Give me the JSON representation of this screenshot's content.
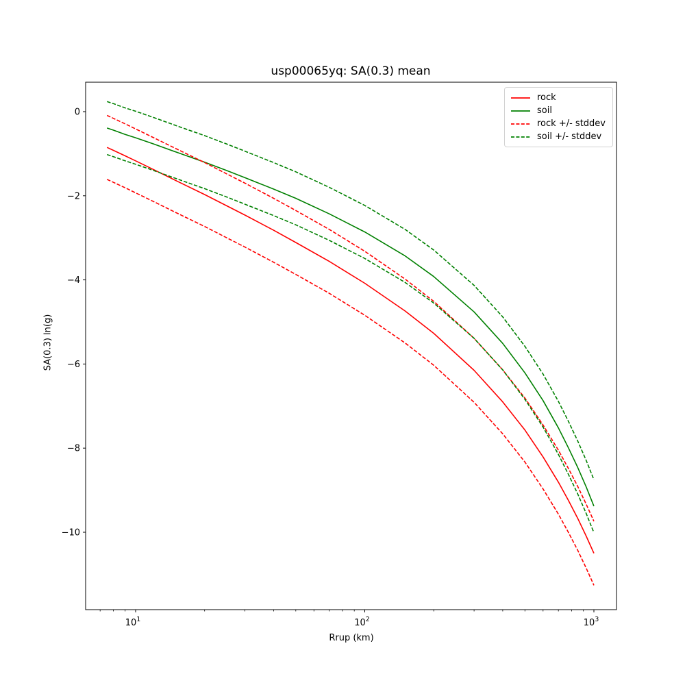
{
  "chart_data": {
    "type": "line",
    "title": "usp00065yq: SA(0.3) mean",
    "xlabel": "Rrup (km)",
    "ylabel": "SA(0.3) ln(g)",
    "x_scale": "log",
    "xlim": [
      6.05,
      1255
    ],
    "ylim": [
      -11.84,
      0.7
    ],
    "grid": false,
    "x_major_ticks": [
      10,
      100,
      1000
    ],
    "x_major_tick_exponents": [
      "1",
      "2",
      "3"
    ],
    "x_major_tick_base": "10",
    "x_minor_ticks": [
      7,
      8,
      9,
      20,
      30,
      40,
      50,
      60,
      70,
      80,
      90,
      200,
      300,
      400,
      500,
      600,
      700,
      800,
      900
    ],
    "y_ticks": [
      0,
      -2,
      -4,
      -6,
      -8,
      -10
    ],
    "x": [
      7.5,
      8,
      9,
      10,
      12,
      15,
      20,
      25,
      30,
      40,
      50,
      70,
      100,
      150,
      200,
      300,
      400,
      500,
      600,
      700,
      775,
      850,
      925,
      1000
    ],
    "series": [
      {
        "name": "rock",
        "color": "#ff0000",
        "style": "solid",
        "values": [
          -0.85,
          -0.92,
          -1.05,
          -1.17,
          -1.38,
          -1.64,
          -1.97,
          -2.24,
          -2.46,
          -2.82,
          -3.11,
          -3.56,
          -4.08,
          -4.74,
          -5.27,
          -6.15,
          -6.9,
          -7.57,
          -8.21,
          -8.81,
          -9.25,
          -9.67,
          -10.09,
          -10.5
        ]
      },
      {
        "name": "soil",
        "color": "#008000",
        "style": "solid",
        "values": [
          -0.39,
          -0.44,
          -0.54,
          -0.62,
          -0.77,
          -0.96,
          -1.2,
          -1.4,
          -1.57,
          -1.84,
          -2.06,
          -2.43,
          -2.86,
          -3.43,
          -3.92,
          -4.76,
          -5.51,
          -6.21,
          -6.87,
          -7.52,
          -8.0,
          -8.46,
          -8.92,
          -9.38
        ]
      },
      {
        "name": "rock-plus-stddev",
        "color": "#ff0000",
        "style": "dashed",
        "values": [
          -0.09,
          -0.16,
          -0.29,
          -0.41,
          -0.62,
          -0.88,
          -1.21,
          -1.48,
          -1.7,
          -2.06,
          -2.35,
          -2.8,
          -3.32,
          -3.98,
          -4.51,
          -5.39,
          -6.14,
          -6.81,
          -7.45,
          -8.05,
          -8.49,
          -8.91,
          -9.33,
          -9.74
        ]
      },
      {
        "name": "rock-minus-stddev",
        "color": "#ff0000",
        "style": "dashed",
        "values": [
          -1.61,
          -1.68,
          -1.81,
          -1.93,
          -2.14,
          -2.4,
          -2.73,
          -3.0,
          -3.22,
          -3.58,
          -3.87,
          -4.32,
          -4.84,
          -5.5,
          -6.03,
          -6.91,
          -7.66,
          -8.33,
          -8.97,
          -9.57,
          -10.01,
          -10.43,
          -10.85,
          -11.26
        ]
      },
      {
        "name": "soil-plus-stddev",
        "color": "#008000",
        "style": "dashed",
        "values": [
          0.24,
          0.19,
          0.09,
          0.01,
          -0.14,
          -0.33,
          -0.57,
          -0.77,
          -0.94,
          -1.21,
          -1.43,
          -1.8,
          -2.23,
          -2.8,
          -3.29,
          -4.13,
          -4.88,
          -5.58,
          -6.24,
          -6.89,
          -7.37,
          -7.83,
          -8.29,
          -8.75
        ]
      },
      {
        "name": "soil-minus-stddev",
        "color": "#008000",
        "style": "dashed",
        "values": [
          -1.02,
          -1.07,
          -1.17,
          -1.25,
          -1.4,
          -1.59,
          -1.83,
          -2.03,
          -2.2,
          -2.47,
          -2.69,
          -3.06,
          -3.49,
          -4.06,
          -4.55,
          -5.39,
          -6.14,
          -6.84,
          -7.5,
          -8.15,
          -8.63,
          -9.09,
          -9.55,
          -10.01
        ]
      }
    ],
    "rock_stddev": 0.76,
    "soil_stddev": 0.63,
    "legend": {
      "position": "upper right",
      "entries": [
        {
          "label": "rock",
          "color": "#ff0000",
          "style": "solid"
        },
        {
          "label": "soil",
          "color": "#008000",
          "style": "solid"
        },
        {
          "label": "rock +/- stddev",
          "color": "#ff0000",
          "style": "dashed"
        },
        {
          "label": "soil +/- stddev",
          "color": "#008000",
          "style": "dashed"
        }
      ]
    },
    "axis_color": "#000000",
    "background_color": "#ffffff"
  }
}
